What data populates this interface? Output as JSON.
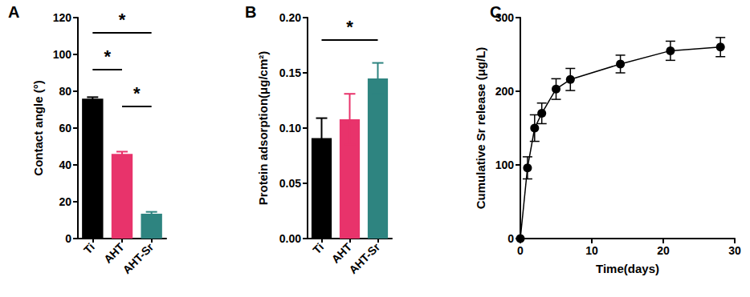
{
  "chart_data": [
    {
      "type": "bar",
      "title": "A",
      "y_label": "Contact angle (°)",
      "categories": [
        "Ti",
        "AHT",
        "AHT-Sr"
      ],
      "values": [
        76,
        46,
        13.5
      ],
      "error": [
        0.8,
        1.2,
        1.0
      ],
      "colors": [
        "#000000",
        "#e8336b",
        "#2e8480"
      ],
      "ylim": [
        0,
        120
      ],
      "yticks": [
        0,
        20,
        40,
        60,
        80,
        100,
        120
      ],
      "grid": false,
      "annotations": [
        {
          "from": "Ti",
          "to": "AHT-Sr",
          "y": 112,
          "text": "*"
        },
        {
          "from": "Ti",
          "to": "AHT",
          "y": 92,
          "text": "*"
        },
        {
          "from": "AHT",
          "to": "AHT-Sr",
          "y": 72,
          "text": "*"
        }
      ]
    },
    {
      "type": "bar",
      "title": "B",
      "y_label": "Protein adsorption(μg/cm²)",
      "categories": [
        "Ti",
        "AHT",
        "AHT-Sr"
      ],
      "values": [
        0.091,
        0.108,
        0.145
      ],
      "error": [
        0.018,
        0.023,
        0.014
      ],
      "colors": [
        "#000000",
        "#e8336b",
        "#2e8480"
      ],
      "ylim": [
        0,
        0.2
      ],
      "yticks": [
        {
          "value": 0,
          "label": "0.00"
        },
        0.05,
        {
          "value": 0.1,
          "label": "0.10"
        },
        0.15,
        {
          "value": 0.2,
          "label": "0.20"
        }
      ],
      "grid": false,
      "annotations": [
        {
          "from": "Ti",
          "to": "AHT-Sr",
          "y": 0.18,
          "text": "*"
        }
      ]
    },
    {
      "type": "line",
      "title": "C",
      "x_label": "Time(days)",
      "y_label": "Cumulative Sr release (μg/L)",
      "x": [
        0,
        1,
        2,
        3,
        5,
        7,
        14,
        21,
        28
      ],
      "values": [
        0,
        96,
        150,
        170,
        203,
        216,
        237,
        255,
        260
      ],
      "error": [
        0,
        15,
        18,
        14,
        14,
        15,
        12,
        13,
        13
      ],
      "color": "#000000",
      "marker": "circle",
      "xlim": [
        0,
        30
      ],
      "xticks": [
        0,
        10,
        20,
        30
      ],
      "ylim": [
        0,
        300
      ],
      "yticks": [
        0,
        100,
        200,
        300
      ],
      "grid": false
    }
  ]
}
